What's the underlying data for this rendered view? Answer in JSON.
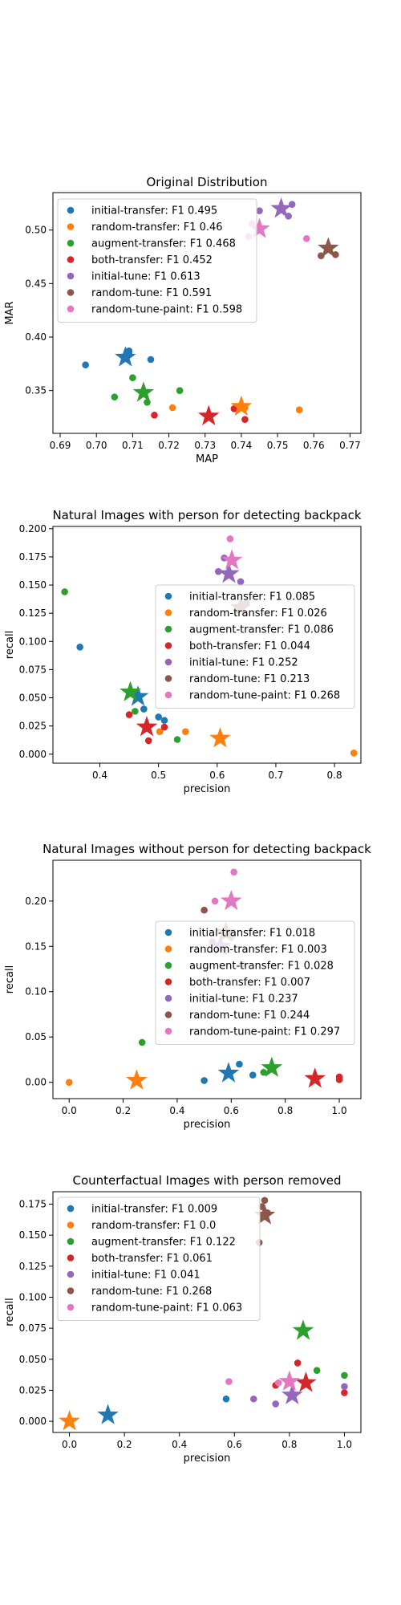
{
  "colors": {
    "initial-transfer": "#1f77b4",
    "random-transfer": "#ff7f0e",
    "augment-transfer": "#2ca02c",
    "both-transfer": "#d62728",
    "initial-tune": "#9467bd",
    "random-tune": "#8c564b",
    "random-tune-paint": "#e377c2"
  },
  "chart_data": [
    {
      "type": "scatter",
      "title": "Original Distribution",
      "xlabel": "MAP",
      "ylabel": "MAR",
      "xlim": [
        0.688,
        0.773
      ],
      "ylim": [
        0.31,
        0.535
      ],
      "xticks": [
        "0.69",
        "0.70",
        "0.71",
        "0.72",
        "0.73",
        "0.74",
        "0.75",
        "0.76",
        "0.77"
      ],
      "yticks": [
        "0.35",
        "0.40",
        "0.45",
        "0.50"
      ],
      "legend_position": "upper-left",
      "series": [
        {
          "name": "initial-transfer: F1 0.495",
          "key": "initial-transfer",
          "points": [
            [
              0.697,
              0.374
            ],
            [
              0.709,
              0.387
            ],
            [
              0.709,
              0.384
            ],
            [
              0.715,
              0.379
            ]
          ],
          "star": [
            0.708,
            0.381
          ]
        },
        {
          "name": "random-transfer: F1 0.46",
          "key": "random-transfer",
          "points": [
            [
              0.721,
              0.334
            ],
            [
              0.741,
              0.334
            ],
            [
              0.756,
              0.332
            ]
          ],
          "star": [
            0.74,
            0.335
          ]
        },
        {
          "name": "augment-transfer: F1 0.468",
          "key": "augment-transfer",
          "points": [
            [
              0.705,
              0.344
            ],
            [
              0.71,
              0.362
            ],
            [
              0.714,
              0.339
            ],
            [
              0.723,
              0.35
            ]
          ],
          "star": [
            0.713,
            0.348
          ]
        },
        {
          "name": "both-transfer: F1 0.452",
          "key": "both-transfer",
          "points": [
            [
              0.716,
              0.327
            ],
            [
              0.738,
              0.333
            ],
            [
              0.741,
              0.323
            ]
          ],
          "star": [
            0.731,
            0.326
          ]
        },
        {
          "name": "initial-tune: F1 0.613",
          "key": "initial-tune",
          "points": [
            [
              0.745,
              0.518
            ],
            [
              0.753,
              0.513
            ],
            [
              0.754,
              0.524
            ]
          ],
          "star": [
            0.751,
            0.52
          ]
        },
        {
          "name": "random-tune: F1 0.591",
          "key": "random-tune",
          "points": [
            [
              0.762,
              0.476
            ],
            [
              0.766,
              0.477
            ]
          ],
          "star": [
            0.764,
            0.483
          ]
        },
        {
          "name": "random-tune-paint: F1 0.598",
          "key": "random-tune-paint",
          "points": [
            [
              0.742,
              0.494
            ],
            [
              0.758,
              0.492
            ],
            [
              0.743,
              0.506
            ]
          ],
          "star": [
            0.745,
            0.501
          ]
        }
      ]
    },
    {
      "type": "scatter",
      "title": "Natural Images with person for detecting backpack",
      "xlabel": "precision",
      "ylabel": "recall",
      "xlim": [
        0.32,
        0.845
      ],
      "ylim": [
        -0.008,
        0.202
      ],
      "xticks": [
        "0.4",
        "0.5",
        "0.6",
        "0.7",
        "0.8"
      ],
      "yticks": [
        "0.000",
        "0.025",
        "0.050",
        "0.075",
        "0.100",
        "0.125",
        "0.150",
        "0.175",
        "0.200"
      ],
      "legend_position": "center-right",
      "series": [
        {
          "name": "initial-transfer: F1 0.085",
          "key": "initial-transfer",
          "points": [
            [
              0.366,
              0.095
            ],
            [
              0.475,
              0.04
            ],
            [
              0.5,
              0.033
            ],
            [
              0.51,
              0.03
            ]
          ],
          "star": [
            0.465,
            0.051
          ]
        },
        {
          "name": "random-transfer: F1 0.026",
          "key": "random-transfer",
          "points": [
            [
              0.502,
              0.02
            ],
            [
              0.546,
              0.02
            ],
            [
              0.833,
              0.001
            ]
          ],
          "star": [
            0.605,
            0.014
          ]
        },
        {
          "name": "augment-transfer: F1 0.086",
          "key": "augment-transfer",
          "points": [
            [
              0.34,
              0.144
            ],
            [
              0.46,
              0.038
            ],
            [
              0.532,
              0.013
            ]
          ],
          "star": [
            0.452,
            0.055
          ]
        },
        {
          "name": "both-transfer: F1 0.044",
          "key": "both-transfer",
          "points": [
            [
              0.45,
              0.035
            ],
            [
              0.483,
              0.012
            ],
            [
              0.51,
              0.024
            ]
          ],
          "star": [
            0.48,
            0.024
          ]
        },
        {
          "name": "initial-tune: F1 0.252",
          "key": "initial-tune",
          "points": [
            [
              0.602,
              0.162
            ],
            [
              0.612,
              0.174
            ],
            [
              0.64,
              0.153
            ]
          ],
          "star": [
            0.62,
            0.16
          ]
        },
        {
          "name": "random-tune: F1 0.213",
          "key": "random-tune",
          "points": [
            [
              0.65,
              0.135
            ]
          ],
          "star": [
            0.64,
            0.13
          ]
        },
        {
          "name": "random-tune-paint: F1 0.268",
          "key": "random-tune-paint",
          "points": [
            [
              0.622,
              0.191
            ]
          ],
          "star": [
            0.625,
            0.172
          ]
        }
      ]
    },
    {
      "type": "scatter",
      "title": "Natural Images without person for detecting backpack",
      "xlabel": "precision",
      "ylabel": "recall",
      "xlim": [
        -0.06,
        1.08
      ],
      "ylim": [
        -0.018,
        0.245
      ],
      "xticks": [
        "0.0",
        "0.2",
        "0.4",
        "0.6",
        "0.8",
        "1.0"
      ],
      "yticks": [
        "0.00",
        "0.05",
        "0.10",
        "0.15",
        "0.20"
      ],
      "legend_position": "center-right",
      "series": [
        {
          "name": "initial-transfer: F1 0.018",
          "key": "initial-transfer",
          "points": [
            [
              0.5,
              0.002
            ],
            [
              0.63,
              0.02
            ],
            [
              0.68,
              0.008
            ]
          ],
          "star": [
            0.59,
            0.01
          ]
        },
        {
          "name": "random-transfer: F1 0.003",
          "key": "random-transfer",
          "points": [
            [
              0.0,
              0.0
            ]
          ],
          "star": [
            0.25,
            0.002
          ]
        },
        {
          "name": "augment-transfer: F1 0.028",
          "key": "augment-transfer",
          "points": [
            [
              0.27,
              0.044
            ],
            [
              0.72,
              0.011
            ]
          ],
          "star": [
            0.75,
            0.016
          ]
        },
        {
          "name": "both-transfer: F1 0.007",
          "key": "both-transfer",
          "points": [
            [
              1.0,
              0.003
            ],
            [
              1.0,
              0.006
            ]
          ],
          "star": [
            0.91,
            0.004
          ]
        },
        {
          "name": "initial-tune: F1 0.237",
          "key": "initial-tune",
          "points": [
            [
              0.53,
              0.155
            ],
            [
              0.6,
              0.16
            ]
          ],
          "star": [
            0.56,
            0.15
          ]
        },
        {
          "name": "random-tune: F1 0.244",
          "key": "random-tune",
          "points": [
            [
              0.5,
              0.19
            ],
            [
              0.64,
              0.13
            ]
          ],
          "star": [
            0.58,
            0.165
          ]
        },
        {
          "name": "random-tune-paint: F1 0.297",
          "key": "random-tune-paint",
          "points": [
            [
              0.54,
              0.2
            ],
            [
              0.61,
              0.232
            ]
          ],
          "star": [
            0.6,
            0.2
          ]
        }
      ]
    },
    {
      "type": "scatter",
      "title": "Counterfactual Images with person removed",
      "xlabel": "precision",
      "ylabel": "recall",
      "xlim": [
        -0.06,
        1.06
      ],
      "ylim": [
        -0.009,
        0.185
      ],
      "xticks": [
        "0.0",
        "0.2",
        "0.4",
        "0.6",
        "0.8",
        "1.0"
      ],
      "yticks": [
        "0.000",
        "0.025",
        "0.050",
        "0.075",
        "0.100",
        "0.125",
        "0.150",
        "0.175"
      ],
      "legend_position": "upper-left",
      "series": [
        {
          "name": "initial-transfer: F1 0.009",
          "key": "initial-transfer",
          "points": [
            [
              0.57,
              0.018
            ]
          ],
          "star": [
            0.14,
            0.005
          ]
        },
        {
          "name": "random-transfer: F1 0.0",
          "key": "random-transfer",
          "points": [],
          "star": [
            0.0,
            0.0
          ]
        },
        {
          "name": "augment-transfer: F1 0.122",
          "key": "augment-transfer",
          "points": [
            [
              0.9,
              0.041
            ],
            [
              1.0,
              0.037
            ]
          ],
          "star": [
            0.85,
            0.073
          ]
        },
        {
          "name": "both-transfer: F1 0.061",
          "key": "both-transfer",
          "points": [
            [
              0.75,
              0.029
            ],
            [
              0.83,
              0.047
            ],
            [
              1.0,
              0.023
            ]
          ],
          "star": [
            0.86,
            0.031
          ]
        },
        {
          "name": "initial-tune: F1 0.041",
          "key": "initial-tune",
          "points": [
            [
              0.67,
              0.018
            ],
            [
              0.75,
              0.014
            ],
            [
              1.0,
              0.028
            ]
          ],
          "star": [
            0.81,
            0.021
          ]
        },
        {
          "name": "random-tune: F1 0.268",
          "key": "random-tune",
          "points": [
            [
              0.69,
              0.144
            ],
            [
              0.7,
              0.173
            ],
            [
              0.71,
              0.178
            ],
            [
              0.72,
              0.168
            ]
          ],
          "star": [
            0.71,
            0.166
          ]
        },
        {
          "name": "random-tune-paint: F1 0.063",
          "key": "random-tune-paint",
          "points": [
            [
              0.58,
              0.032
            ],
            [
              0.76,
              0.031
            ]
          ],
          "star": [
            0.8,
            0.032
          ]
        }
      ]
    }
  ]
}
